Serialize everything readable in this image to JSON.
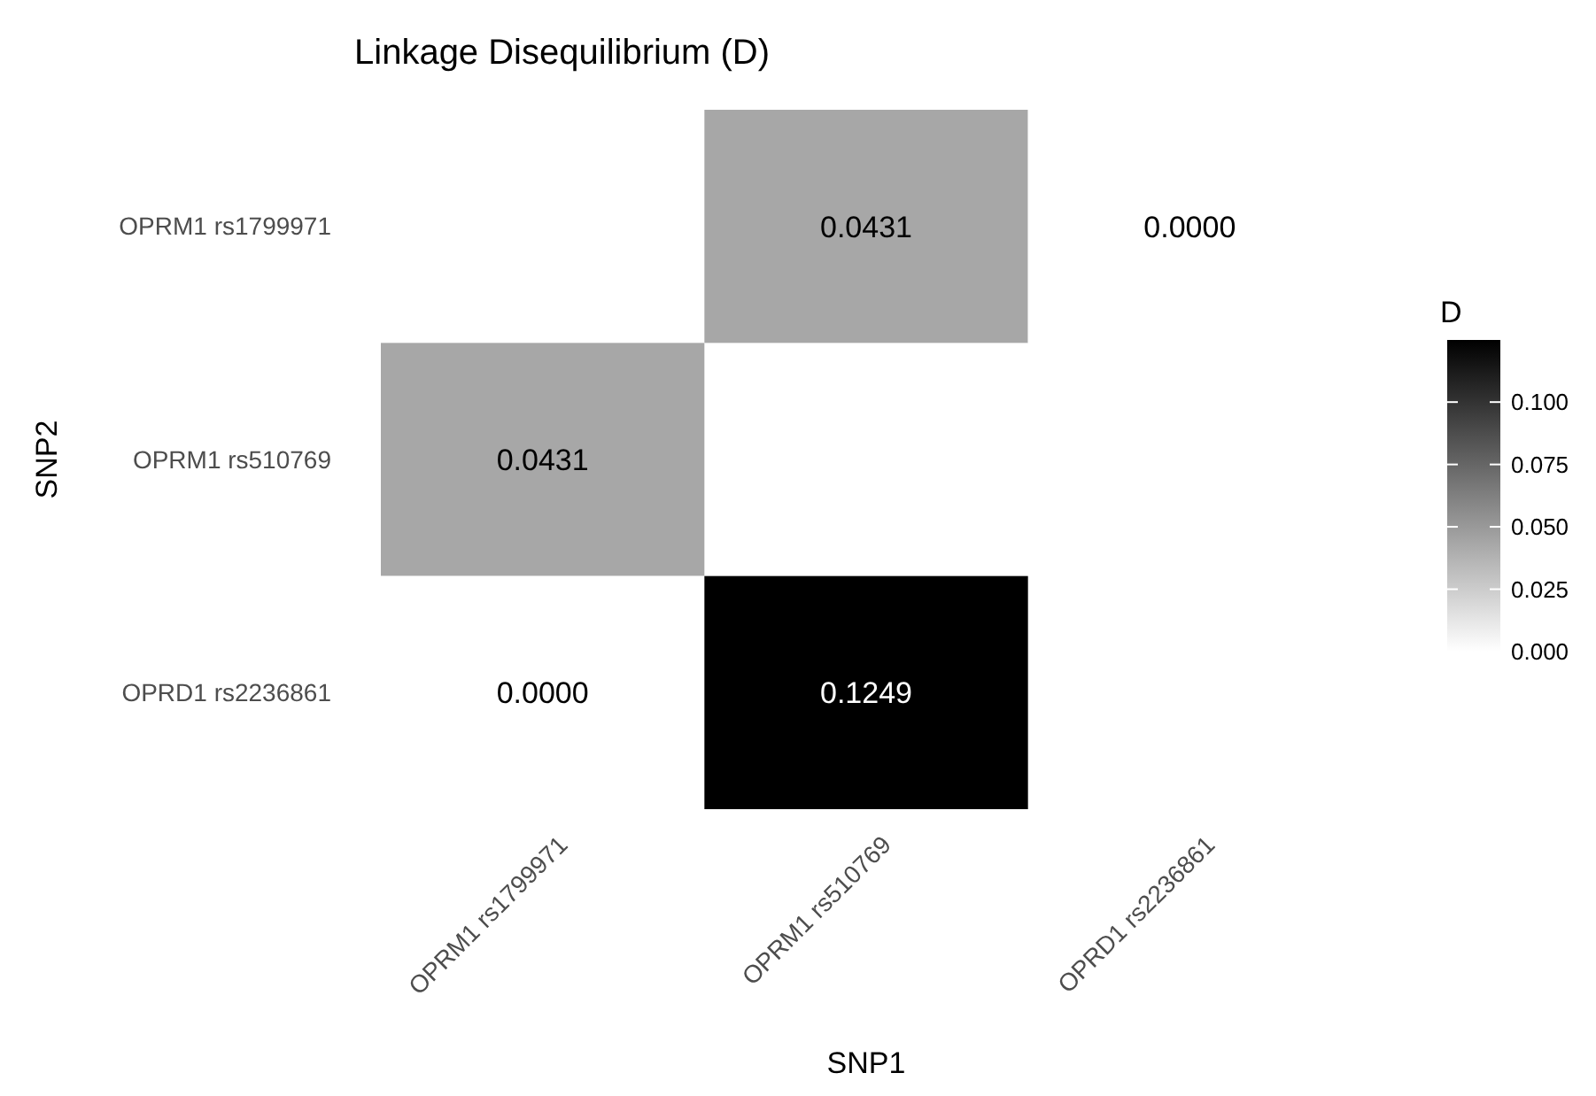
{
  "chart_data": {
    "type": "heatmap",
    "title": "Linkage Disequilibrium (D)",
    "xlabel": "SNP1",
    "ylabel": "SNP2",
    "legend_title": "D",
    "categories": [
      "OPRM1 rs1799971",
      "OPRM1 rs510769",
      "OPRD1 rs2236861"
    ],
    "y_categories": [
      "OPRM1 rs1799971",
      "OPRM1 rs510769",
      "OPRD1 rs2236861"
    ],
    "cells": [
      [
        null,
        0.0431,
        0
      ],
      [
        0.0431,
        null,
        null
      ],
      [
        0,
        0.1249,
        null
      ]
    ],
    "cell_labels": [
      [
        null,
        "0.0431",
        "0.0000"
      ],
      [
        "0.0431",
        null,
        null
      ],
      [
        "0.0000",
        "0.1249",
        null
      ]
    ],
    "clim": [
      0,
      0.1249
    ],
    "cticks": [
      {
        "value": 0,
        "label": "0.000"
      },
      {
        "value": 0.025,
        "label": "0.025"
      },
      {
        "value": 0.05,
        "label": "0.050"
      },
      {
        "value": 0.075,
        "label": "0.075"
      },
      {
        "value": 0.1,
        "label": "0.100"
      }
    ]
  }
}
